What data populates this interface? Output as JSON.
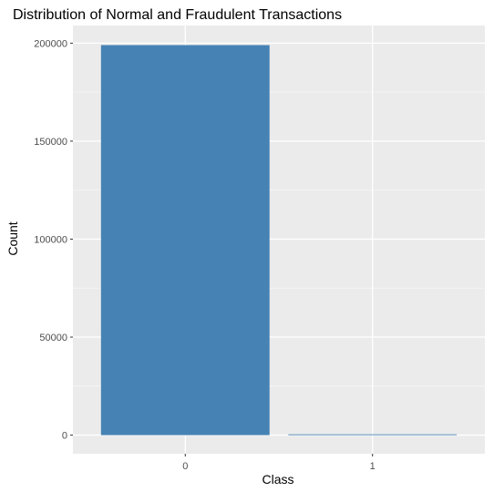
{
  "chart_data": {
    "type": "bar",
    "title": "Distribution of Normal and Fraudulent Transactions",
    "xlabel": "Class",
    "ylabel": "Count",
    "categories": [
      "0",
      "1"
    ],
    "values": [
      199000,
      400
    ],
    "ylim": [
      -9500,
      209000
    ],
    "yticks": [
      0,
      50000,
      100000,
      150000,
      200000
    ],
    "ytick_labels": [
      "0",
      "50000",
      "100000",
      "150000",
      "200000"
    ],
    "grid": true,
    "legend": "none",
    "colors": {
      "bar": "#4682B4",
      "panel_background": "#EBEBEB",
      "grid_major": "#FFFFFF",
      "grid_minor": "#F5F5F5",
      "tick_text": "#4D4D4D",
      "tick_mark": "#333333"
    }
  }
}
